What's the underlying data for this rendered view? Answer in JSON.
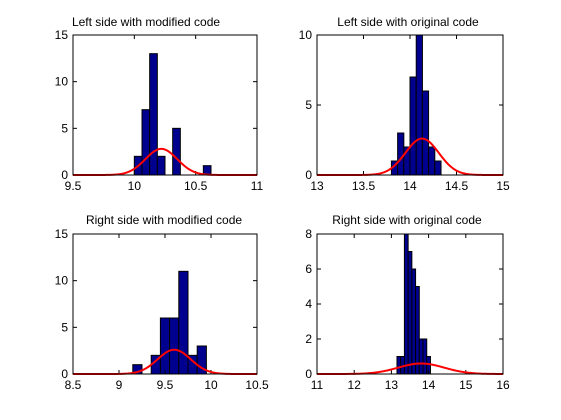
{
  "colors": {
    "bar_fill": "#00008f",
    "bar_edge": "#000000",
    "fit_line": "#ff0000"
  },
  "chart_data": [
    {
      "type": "bar",
      "title": "Left side with modified code",
      "xlim": [
        9.5,
        11
      ],
      "ylim": [
        0,
        15
      ],
      "xticks": [
        9.5,
        10,
        10.5,
        11
      ],
      "yticks": [
        0,
        5,
        10,
        15
      ],
      "bin_width": 0.0625,
      "bins": [
        {
          "x": 10.0,
          "value": 2
        },
        {
          "x": 10.0625,
          "value": 7
        },
        {
          "x": 10.125,
          "value": 13
        },
        {
          "x": 10.1875,
          "value": 2
        },
        {
          "x": 10.25,
          "value": 0
        },
        {
          "x": 10.3125,
          "value": 5
        },
        {
          "x": 10.375,
          "value": 0
        },
        {
          "x": 10.4375,
          "value": 0
        },
        {
          "x": 10.5,
          "value": 0
        },
        {
          "x": 10.5625,
          "value": 1
        }
      ],
      "fit": {
        "mean": 10.22,
        "std": 0.13,
        "peak": 2.8
      }
    },
    {
      "type": "bar",
      "title": "Left side with original code",
      "xlim": [
        13,
        15
      ],
      "ylim": [
        0,
        10
      ],
      "xticks": [
        13,
        13.5,
        14,
        14.5,
        15
      ],
      "yticks": [
        0,
        5,
        10
      ],
      "bin_width": 0.0667,
      "bins": [
        {
          "x": 13.8,
          "value": 1
        },
        {
          "x": 13.867,
          "value": 3
        },
        {
          "x": 13.933,
          "value": 2
        },
        {
          "x": 14.0,
          "value": 7
        },
        {
          "x": 14.067,
          "value": 10
        },
        {
          "x": 14.133,
          "value": 6
        },
        {
          "x": 14.2,
          "value": 2
        },
        {
          "x": 14.267,
          "value": 1
        }
      ],
      "fit": {
        "mean": 14.13,
        "std": 0.18,
        "peak": 2.6
      }
    },
    {
      "type": "bar",
      "title": "Right side with modified code",
      "xlim": [
        8.5,
        10.5
      ],
      "ylim": [
        0,
        15
      ],
      "xticks": [
        8.5,
        9,
        9.5,
        10,
        10.5
      ],
      "yticks": [
        0,
        5,
        10,
        15
      ],
      "bin_width": 0.1,
      "bins": [
        {
          "x": 9.15,
          "value": 1
        },
        {
          "x": 9.25,
          "value": 0
        },
        {
          "x": 9.35,
          "value": 2
        },
        {
          "x": 9.45,
          "value": 6
        },
        {
          "x": 9.55,
          "value": 6
        },
        {
          "x": 9.65,
          "value": 11
        },
        {
          "x": 9.75,
          "value": 2
        },
        {
          "x": 9.85,
          "value": 3
        }
      ],
      "fit": {
        "mean": 9.6,
        "std": 0.18,
        "peak": 2.6
      }
    },
    {
      "type": "bar",
      "title": "Right side with original code",
      "xlim": [
        11,
        16
      ],
      "ylim": [
        0,
        8
      ],
      "xticks": [
        11,
        12,
        13,
        14,
        15,
        16
      ],
      "yticks": [
        0,
        2,
        4,
        6,
        8
      ],
      "bin_width": 0.1,
      "bins": [
        {
          "x": 13.15,
          "value": 1
        },
        {
          "x": 13.25,
          "value": 1
        },
        {
          "x": 13.35,
          "value": 8
        },
        {
          "x": 13.45,
          "value": 7
        },
        {
          "x": 13.55,
          "value": 6
        },
        {
          "x": 13.65,
          "value": 5
        },
        {
          "x": 13.75,
          "value": 2
        },
        {
          "x": 13.85,
          "value": 2
        },
        {
          "x": 13.95,
          "value": 1
        }
      ],
      "fit": {
        "mean": 13.8,
        "std": 0.62,
        "peak": 0.6
      }
    }
  ]
}
